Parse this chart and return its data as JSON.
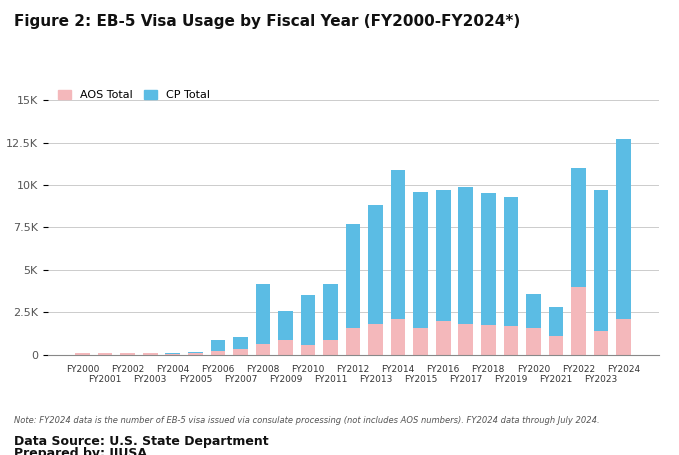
{
  "title": "Figure 2: EB-5 Visa Usage by Fiscal Year (FY2000-FY2024*)",
  "fiscal_years": [
    "FY2000",
    "FY2001",
    "FY2002",
    "FY2003",
    "FY2004",
    "FY2005",
    "FY2006",
    "FY2007",
    "FY2008",
    "FY2009",
    "FY2010",
    "FY2011",
    "FY2012",
    "FY2013",
    "FY2014",
    "FY2015",
    "FY2016",
    "FY2017",
    "FY2018",
    "FY2019",
    "FY2020",
    "FY2021",
    "FY2022",
    "FY2023",
    "FY2024"
  ],
  "aos_total": [
    107,
    107,
    107,
    107,
    50,
    100,
    250,
    350,
    650,
    900,
    600,
    900,
    1600,
    1800,
    2100,
    1600,
    2000,
    1800,
    1750,
    1700,
    1600,
    1100,
    4000,
    1400,
    2100
  ],
  "cp_total": [
    30,
    20,
    20,
    20,
    50,
    100,
    600,
    700,
    3550,
    1700,
    2950,
    3300,
    6100,
    7000,
    8800,
    8000,
    7700,
    8100,
    7800,
    7600,
    2000,
    1700,
    7000,
    8300,
    10600
  ],
  "cp_color": "#5bbce4",
  "aos_color": "#f4b8bb",
  "ylim": [
    0,
    15000
  ],
  "yticks": [
    0,
    2500,
    5000,
    7500,
    10000,
    12500,
    15000
  ],
  "ytick_labels": [
    "0",
    "2.5K",
    "5K",
    "7.5K",
    "10K",
    "12.5K",
    "15K"
  ],
  "note": "Note: FY2024 data is the number of EB-5 visa issued via consulate processing (not includes AOS numbers). FY2024 data through July 2024.",
  "datasource": "Data Source: U.S. State Department",
  "preparedby": "Prepared by: IIUSA",
  "legend_aos": "AOS Total",
  "legend_cp": "CP Total",
  "bg_color": "#ffffff",
  "grid_color": "#cccccc"
}
